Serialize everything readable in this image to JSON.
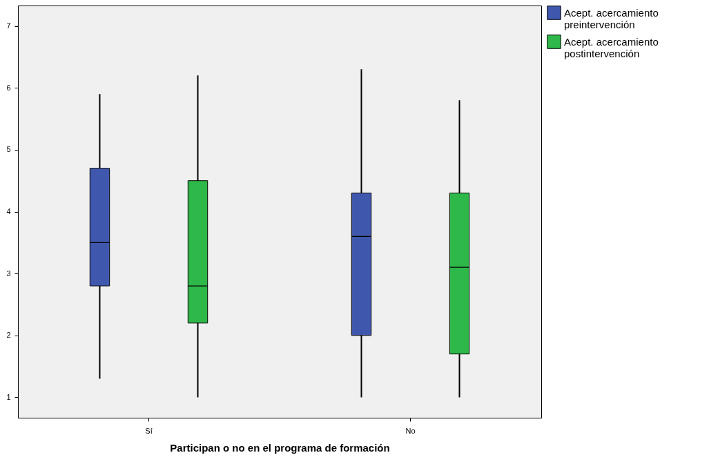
{
  "chart_data": {
    "type": "box",
    "xlabel": "Participan o no en el programa de formación",
    "categories": [
      "Sí",
      "No"
    ],
    "series": [
      {
        "name": "Acept. acercamiento preintervención",
        "color": "#3f58ad",
        "boxes": [
          {
            "low": 1.3,
            "q1": 2.8,
            "median": 3.5,
            "q3": 4.7,
            "high": 5.9
          },
          {
            "low": 1.0,
            "q1": 2.0,
            "median": 3.6,
            "q3": 4.3,
            "high": 6.3
          }
        ]
      },
      {
        "name": "Acept. acercamiento postintervención",
        "color": "#2fb84a",
        "boxes": [
          {
            "low": 1.0,
            "q1": 2.2,
            "median": 2.8,
            "q3": 4.5,
            "high": 6.2
          },
          {
            "low": 1.0,
            "q1": 1.7,
            "median": 3.1,
            "q3": 4.3,
            "high": 5.8
          }
        ]
      }
    ],
    "ylim": [
      0.67,
      7.33
    ],
    "yticks": [
      1,
      2,
      3,
      4,
      5,
      6,
      7
    ],
    "grid": false,
    "legend": "top right"
  }
}
